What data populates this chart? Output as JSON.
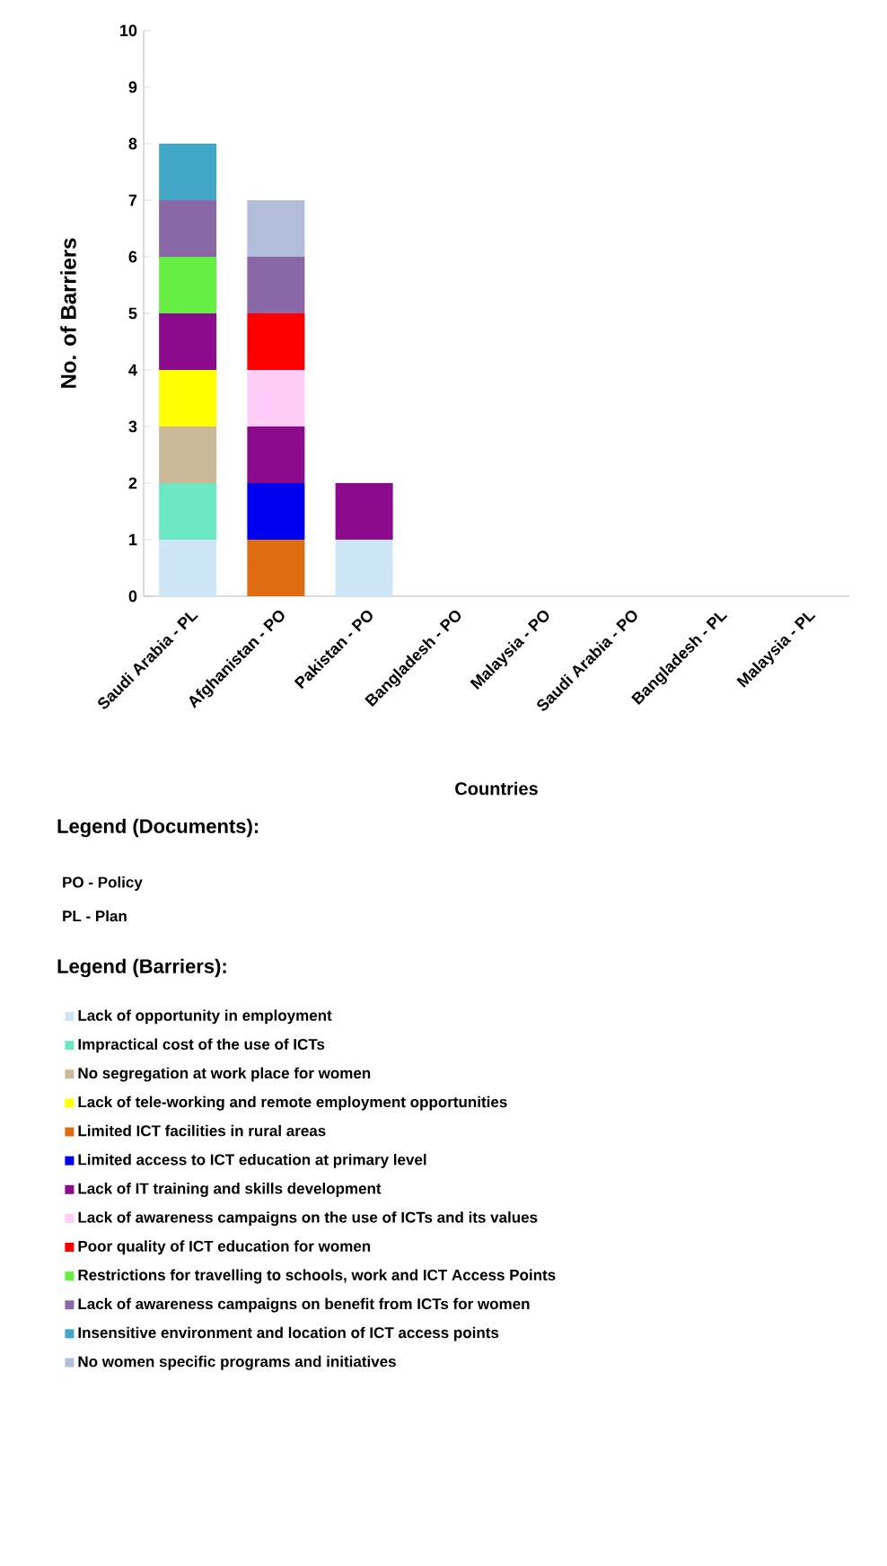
{
  "chart_data": {
    "type": "bar",
    "stacked": true,
    "xlabel": "Countries",
    "ylabel": "No. of Barriers",
    "legend_title": "Legend (Barriers):",
    "legend": "bottom",
    "categories": [
      "Saudi Arabia - PL",
      "Afghanistan - PO",
      "Pakistan - PO",
      "Bangladesh - PO",
      "Malaysia - PO",
      "Saudi Arabia - PO",
      "Bangladesh - PL",
      "Malaysia - PL"
    ],
    "ylim": [
      0,
      10
    ],
    "yticks": [
      0,
      1,
      2,
      3,
      4,
      5,
      6,
      7,
      8,
      9,
      10
    ],
    "grid": false,
    "annotations": [
      "Legend (Documents):",
      "PO - Policy",
      "PL - Plan"
    ],
    "series": [
      {
        "name": "Lack of opportunity in employment",
        "color": "#cde6f7",
        "values": [
          1,
          0,
          1,
          0,
          0,
          0,
          0,
          0
        ]
      },
      {
        "name": "Impractical cost of the use of ICTs",
        "color": "#6be8c3",
        "values": [
          1,
          0,
          0,
          0,
          0,
          0,
          0,
          0
        ]
      },
      {
        "name": "No segregation at work place for women",
        "color": "#c9b999",
        "values": [
          1,
          0,
          0,
          0,
          0,
          0,
          0,
          0
        ]
      },
      {
        "name": "Lack of tele-working and remote employment opportunities",
        "color": "#ffff00",
        "values": [
          1,
          0,
          0,
          0,
          0,
          0,
          0,
          0
        ]
      },
      {
        "name": "Limited ICT facilities in rural areas",
        "color": "#e06c12",
        "values": [
          0,
          1,
          0,
          0,
          0,
          0,
          0,
          0
        ]
      },
      {
        "name": "Limited access to ICT education at primary level",
        "color": "#0000f0",
        "values": [
          0,
          1,
          0,
          0,
          0,
          0,
          0,
          0
        ]
      },
      {
        "name": "Lack of IT training and skills development",
        "color": "#8c0a8c",
        "values": [
          1,
          1,
          1,
          0,
          0,
          0,
          0,
          0
        ]
      },
      {
        "name": "Lack of awareness campaigns on the use of ICTs and its values",
        "color": "#ffccf8",
        "values": [
          0,
          1,
          0,
          0,
          0,
          0,
          0,
          0
        ]
      },
      {
        "name": "Poor quality of ICT education for women",
        "color": "#ff0000",
        "values": [
          0,
          1,
          0,
          0,
          0,
          0,
          0,
          0
        ]
      },
      {
        "name": "Restrictions for travelling to schools, work and ICT Access Points",
        "color": "#66ee44",
        "values": [
          1,
          0,
          0,
          0,
          0,
          0,
          0,
          0
        ]
      },
      {
        "name": "Lack of awareness campaigns on benefit from ICTs for women",
        "color": "#8a68a8",
        "values": [
          1,
          1,
          0,
          0,
          0,
          0,
          0,
          0
        ]
      },
      {
        "name": "Insensitive environment and location of ICT access points",
        "color": "#42a6c6",
        "values": [
          1,
          0,
          0,
          0,
          0,
          0,
          0,
          0
        ]
      },
      {
        "name": "No women specific programs and initiatives",
        "color": "#b2bdd9",
        "values": [
          0,
          1,
          0,
          0,
          0,
          0,
          0,
          0
        ]
      }
    ]
  }
}
